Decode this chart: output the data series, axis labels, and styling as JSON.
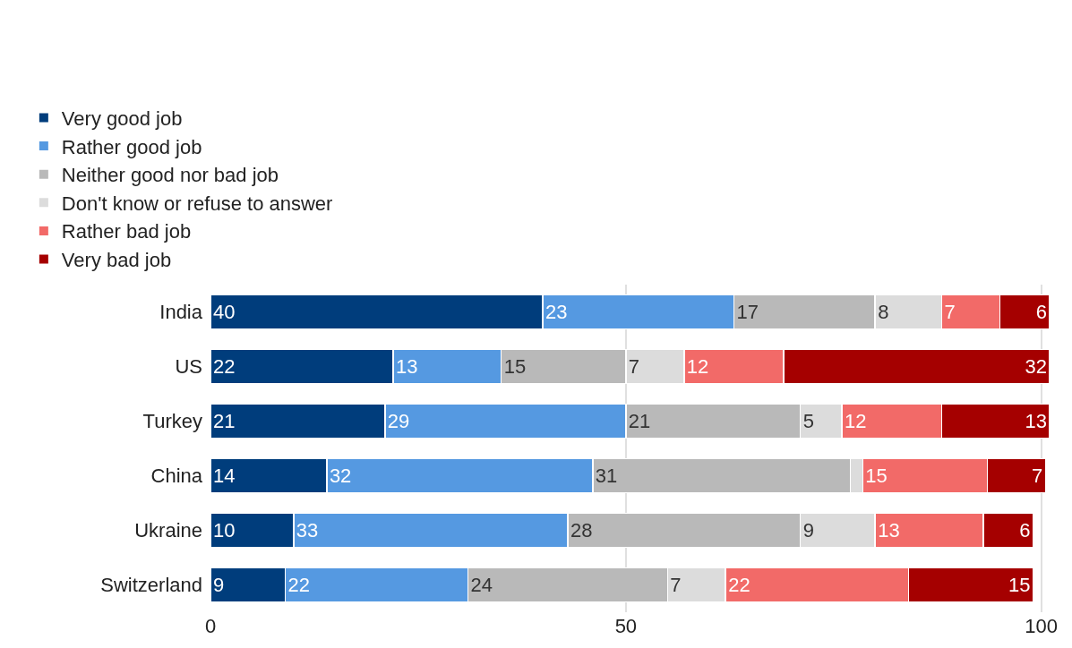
{
  "chart_data": {
    "type": "bar",
    "orientation": "horizontal",
    "stacked": true,
    "categories": [
      "India",
      "US",
      "Turkey",
      "China",
      "Ukraine",
      "Switzerland"
    ],
    "series": [
      {
        "name": "Very good job",
        "color": "#003d7c",
        "values": [
          40,
          22,
          21,
          14,
          10,
          9
        ],
        "value_labels": [
          "40",
          "22",
          "21",
          "14",
          "10",
          "9"
        ]
      },
      {
        "name": "Rather good job",
        "color": "#5599e1",
        "values": [
          23,
          13,
          29,
          32,
          33,
          22
        ],
        "value_labels": [
          "23",
          "13",
          "29",
          "32",
          "33",
          "22"
        ]
      },
      {
        "name": "Neither good nor bad job",
        "color": "#b9b9b9",
        "values": [
          17,
          15,
          21,
          31,
          28,
          24
        ],
        "value_labels": [
          "17",
          "15",
          "21",
          "31",
          "28",
          "24"
        ]
      },
      {
        "name": "Don't know or refuse to answer",
        "color": "#dcdcdc",
        "values": [
          8,
          7,
          5,
          1.5,
          9,
          7
        ],
        "value_labels": [
          "8",
          "7",
          "5",
          null,
          "9",
          "7"
        ]
      },
      {
        "name": "Rather bad job",
        "color": "#f26a68",
        "values": [
          7,
          12,
          12,
          15,
          13,
          22
        ],
        "value_labels": [
          "7",
          "12",
          "12",
          "15",
          "13",
          "22"
        ]
      },
      {
        "name": "Very bad job",
        "color": "#a50000",
        "values": [
          6,
          32,
          13,
          7,
          6,
          15
        ],
        "value_labels": [
          "6",
          "32",
          "13",
          "7",
          "6",
          "15"
        ]
      }
    ],
    "xlim": [
      0,
      101
    ],
    "xticks": [
      0,
      50,
      100
    ],
    "grid": "x",
    "legend": "top left"
  }
}
